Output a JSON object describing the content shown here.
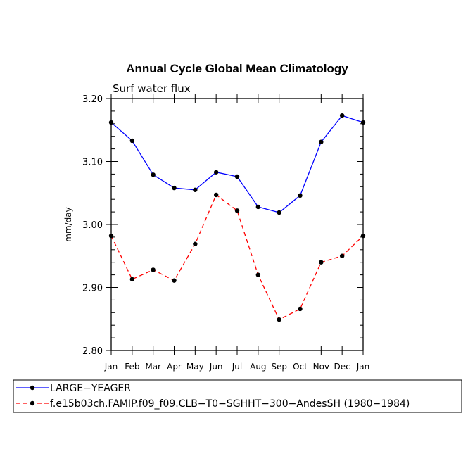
{
  "chart_data": {
    "type": "line",
    "title": "Annual Cycle Global Mean Climatology",
    "subtitle": "Surf water flux",
    "xlabel": "",
    "ylabel": "mm/day",
    "ylim": [
      2.8,
      3.2
    ],
    "yticks": [
      "2.80",
      "2.90",
      "3.00",
      "3.10",
      "3.20"
    ],
    "categories": [
      "Jan",
      "Feb",
      "Mar",
      "Apr",
      "May",
      "Jun",
      "Jul",
      "Aug",
      "Sep",
      "Oct",
      "Nov",
      "Dec",
      "Jan"
    ],
    "series": [
      {
        "name": "LARGE−YEAGER",
        "color": "#0000ff",
        "dash": "solid",
        "values": [
          3.162,
          3.133,
          3.079,
          3.058,
          3.055,
          3.083,
          3.076,
          3.028,
          3.019,
          3.046,
          3.131,
          3.173,
          3.162
        ]
      },
      {
        "name": "f.e15b03ch.FAMIP.f09_f09.CLB−T0−SGHHT−300−AndesSH (1980−1984)",
        "color": "#ff0000",
        "dash": "dashed",
        "values": [
          2.982,
          2.913,
          2.928,
          2.911,
          2.969,
          3.047,
          3.022,
          2.92,
          2.849,
          2.866,
          2.94,
          2.95,
          2.982
        ]
      }
    ],
    "grid": false,
    "legend_placement": "bottom-left"
  }
}
